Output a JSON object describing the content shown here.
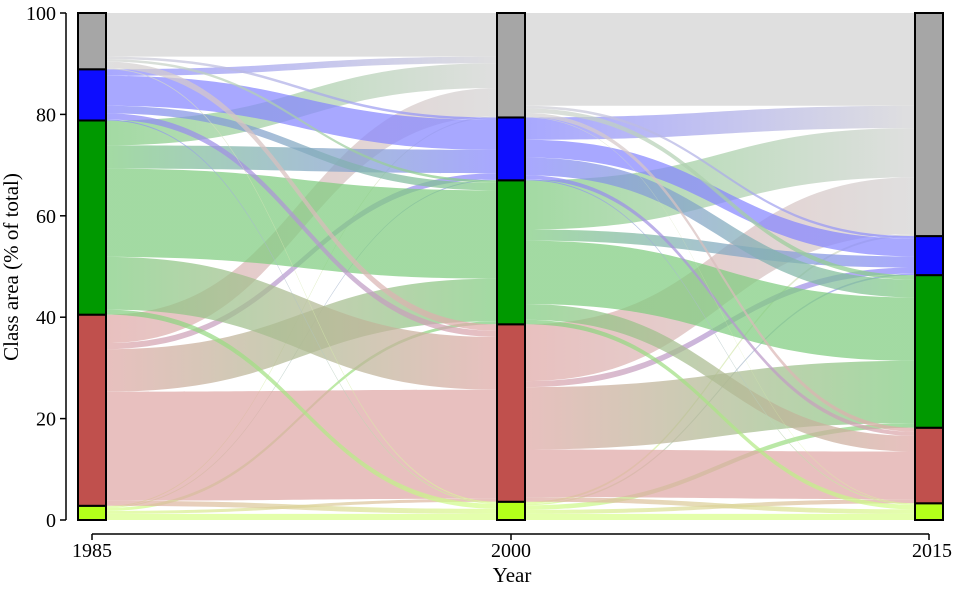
{
  "chart_data": {
    "type": "sankey-alluvial",
    "title": "",
    "xlabel": "Year",
    "ylabel": "Class area (% of total)",
    "ylim": [
      0,
      100
    ],
    "yticks": [
      0,
      20,
      40,
      60,
      80,
      100
    ],
    "ytick_labels": [
      "0",
      "20",
      "40",
      "60",
      "80",
      "100"
    ],
    "years": [
      "1985",
      "2000",
      "2015"
    ],
    "classes": [
      {
        "id": "yellowgreen",
        "color": "#b3ff1a",
        "flow_color": "#d9ff8c"
      },
      {
        "id": "red",
        "color": "#c0504d",
        "flow_color": "#dfa8a6"
      },
      {
        "id": "green",
        "color": "#009900",
        "flow_color": "#7fcc7f"
      },
      {
        "id": "blue",
        "color": "#0d0dff",
        "flow_color": "#8686ff"
      },
      {
        "id": "gray",
        "color": "#a6a6a6",
        "flow_color": "#d3d3d3"
      }
    ],
    "stack_order_bottom_to_top": [
      "yellowgreen",
      "red",
      "green",
      "blue",
      "gray"
    ],
    "shares": {
      "1985": {
        "yellowgreen": 2.8,
        "red": 37.7,
        "green": 38.3,
        "blue": 10.1,
        "gray": 11.1
      },
      "2000": {
        "yellowgreen": 3.6,
        "red": 35.0,
        "green": 28.4,
        "blue": 12.4,
        "gray": 20.6
      },
      "2015": {
        "yellowgreen": 3.3,
        "red": 14.9,
        "green": 30.1,
        "blue": 7.7,
        "gray": 44.0
      }
    },
    "transitions": [
      {
        "from": "1985",
        "to": "2000",
        "matrix": {
          "yellowgreen": {
            "yellowgreen": 1.2,
            "red": 0.6,
            "green": 0.6,
            "blue": 0.2,
            "gray": 0.2
          },
          "red": {
            "yellowgreen": 1.0,
            "red": 21.5,
            "green": 8.4,
            "blue": 1.2,
            "gray": 5.6
          },
          "green": {
            "yellowgreen": 1.0,
            "red": 10.4,
            "green": 17.4,
            "blue": 4.6,
            "gray": 4.9
          },
          "blue": {
            "yellowgreen": 0.2,
            "red": 1.2,
            "green": 1.5,
            "blue": 5.9,
            "gray": 1.3
          },
          "gray": {
            "yellowgreen": 0.2,
            "red": 1.3,
            "green": 0.5,
            "blue": 0.5,
            "gray": 8.6
          }
        }
      },
      {
        "from": "2000",
        "to": "2015",
        "matrix": {
          "yellowgreen": {
            "yellowgreen": 1.2,
            "red": 0.8,
            "green": 0.9,
            "blue": 0.3,
            "gray": 0.4
          },
          "red": {
            "yellowgreen": 0.9,
            "red": 9.4,
            "green": 12.3,
            "blue": 1.2,
            "gray": 11.2
          },
          "green": {
            "yellowgreen": 0.9,
            "red": 3.1,
            "green": 12.5,
            "blue": 2.2,
            "gray": 9.7
          },
          "blue": {
            "yellowgreen": 0.2,
            "red": 0.8,
            "green": 3.5,
            "blue": 3.5,
            "gray": 4.4
          },
          "gray": {
            "yellowgreen": 0.1,
            "red": 0.8,
            "green": 0.9,
            "blue": 0.5,
            "gray": 18.3
          }
        }
      }
    ]
  }
}
